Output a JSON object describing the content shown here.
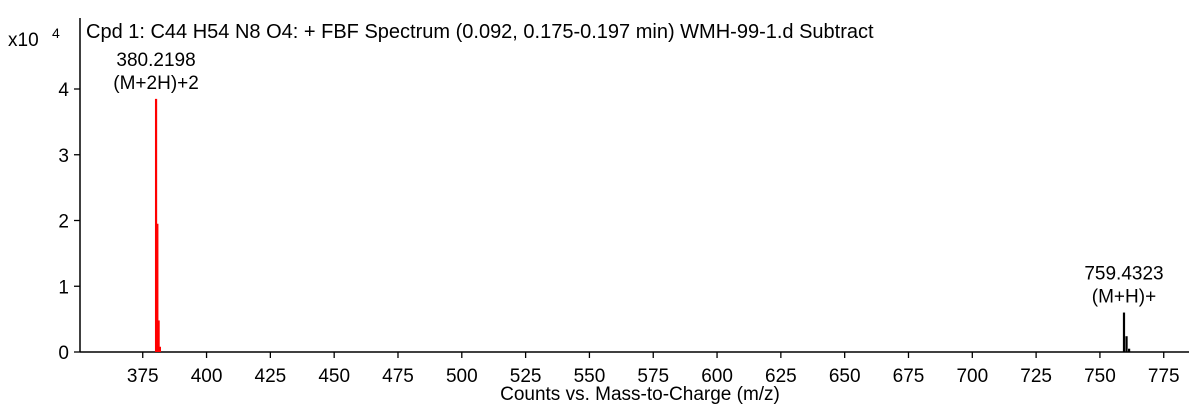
{
  "chart_data": {
    "type": "bar",
    "title": "Cpd 1: C44 H54 N8 O4: + FBF Spectrum (0.092, 0.175-0.197 min) WMH-99-1.d  Subtract",
    "xlabel": "Counts vs. Mass-to-Charge (m/z)",
    "ylabel": "",
    "y_scale_label": "x10",
    "y_scale_exponent": "4",
    "xlim": [
      350,
      780
    ],
    "ylim": [
      0,
      4.4
    ],
    "x_ticks": [
      375,
      400,
      425,
      450,
      475,
      500,
      525,
      550,
      575,
      600,
      625,
      650,
      675,
      700,
      725,
      750,
      775
    ],
    "y_ticks": [
      0,
      1,
      2,
      3,
      4
    ],
    "grid": false,
    "series": [
      {
        "color": "#ff0000",
        "peaks": [
          {
            "mz": 380.22,
            "intensity": 3.85
          },
          {
            "mz": 380.72,
            "intensity": 1.95
          },
          {
            "mz": 381.22,
            "intensity": 0.48
          },
          {
            "mz": 381.72,
            "intensity": 0.08
          }
        ]
      },
      {
        "color": "#000000",
        "peaks": [
          {
            "mz": 759.43,
            "intensity": 0.6
          },
          {
            "mz": 760.43,
            "intensity": 0.24
          },
          {
            "mz": 761.43,
            "intensity": 0.05
          }
        ]
      }
    ],
    "annotations": [
      {
        "mz": 380.22,
        "intensity": 3.85,
        "lines": [
          "380.2198",
          "(M+2H)+2"
        ]
      },
      {
        "mz": 759.43,
        "intensity": 0.6,
        "lines": [
          "759.4323",
          "(M+H)+"
        ]
      }
    ]
  }
}
